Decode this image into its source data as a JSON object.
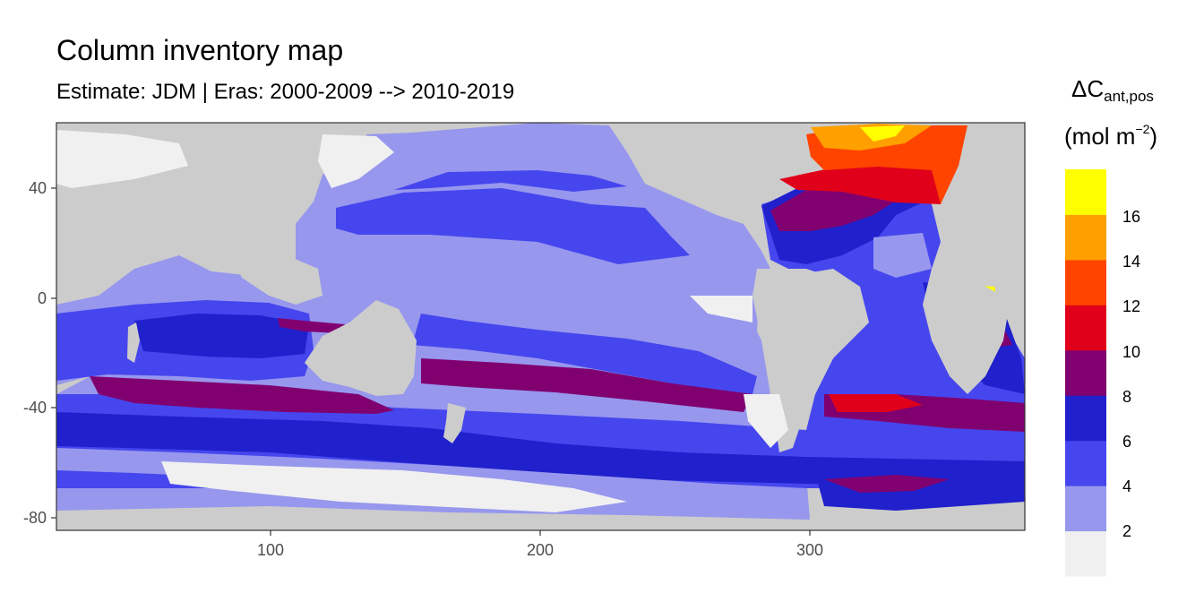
{
  "title": "Column inventory map",
  "subtitle": "Estimate: JDM  | Eras: 2000-2009 --> 2010-2019",
  "legend": {
    "title_symbol": "ΔC",
    "title_subscript": "ant,pos",
    "unit_open": "(mol m",
    "unit_exponent": "−2",
    "unit_close": ")",
    "breaks": [
      "2",
      "4",
      "6",
      "8",
      "10",
      "12",
      "14",
      "16"
    ],
    "colors": [
      "#f0f0f0",
      "#9797ee",
      "#4646ee",
      "#2020cc",
      "#800070",
      "#e0001a",
      "#ff4400",
      "#ffa000",
      "#ffff00"
    ]
  },
  "chart_data": {
    "type": "heatmap",
    "x_ticks": [
      100,
      200,
      300
    ],
    "y_ticks": [
      40,
      0,
      -40,
      -80
    ],
    "xlim": [
      20,
      380
    ],
    "ylim": [
      -85,
      65
    ],
    "land_color": "#cccccc",
    "levels": [
      {
        "range": "0-2",
        "color": "#f0f0f0"
      },
      {
        "range": "2-4",
        "color": "#9797ee"
      },
      {
        "range": "4-6",
        "color": "#4646ee"
      },
      {
        "range": "6-8",
        "color": "#2020cc"
      },
      {
        "range": "8-10",
        "color": "#800070"
      },
      {
        "range": "10-12",
        "color": "#e0001a"
      },
      {
        "range": "12-14",
        "color": "#ff4400"
      },
      {
        "range": "14-16",
        "color": "#ffa000"
      },
      {
        "range": "16-18",
        "color": "#ffff00"
      }
    ]
  }
}
